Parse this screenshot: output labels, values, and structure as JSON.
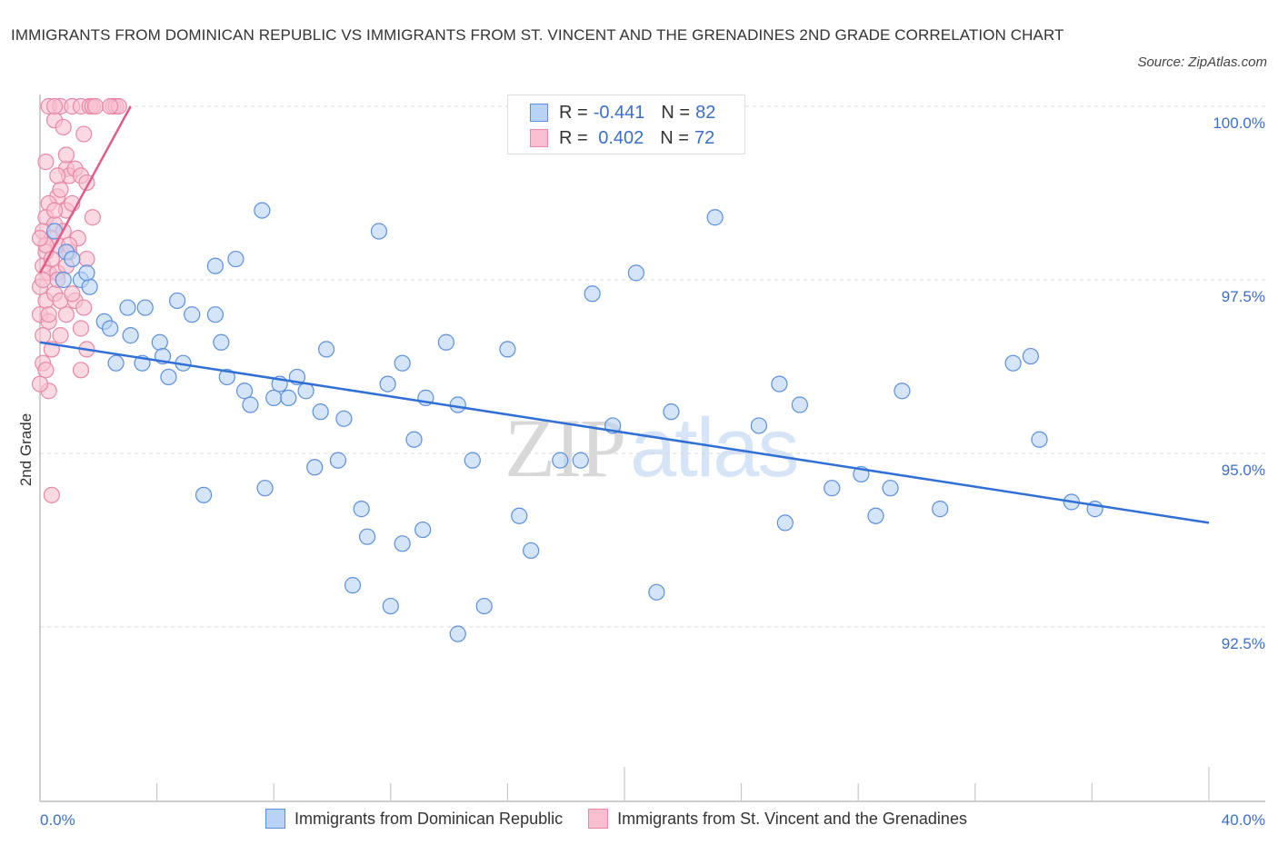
{
  "header": {
    "title": "IMMIGRANTS FROM DOMINICAN REPUBLIC VS IMMIGRANTS FROM ST. VINCENT AND THE GRENADINES 2ND GRADE CORRELATION CHART",
    "source": "Source: ZipAtlas.com"
  },
  "watermark": {
    "zip": "ZIP",
    "atlas": "atlas"
  },
  "legend": {
    "rows": [
      {
        "r_label": "R =",
        "r_value": "-0.441",
        "n_label": "N =",
        "n_value": "82"
      },
      {
        "r_label": "R =",
        "r_value": " 0.402",
        "n_label": "N =",
        "n_value": "72"
      }
    ]
  },
  "colors": {
    "blue_fill": "#b9d3f5",
    "blue_stroke": "#5b8fdc",
    "blue_line": "#2f6fd6",
    "pink_fill": "#f8bfd0",
    "pink_stroke": "#e888a6",
    "pink_line": "#e05c86",
    "tick_text": "#3b6fc7",
    "grid": "#d9d9d9"
  },
  "chart_data": {
    "type": "scatter",
    "title": "IMMIGRANTS FROM DOMINICAN REPUBLIC VS IMMIGRANTS FROM ST. VINCENT AND THE GRENADINES 2ND GRADE CORRELATION CHART",
    "xlabel": "",
    "ylabel": "2nd Grade",
    "xlim": [
      0,
      40
    ],
    "ylim": [
      90.0,
      100.2
    ],
    "x_tick_labels": [
      "0.0%",
      "40.0%"
    ],
    "y_ticks": [
      100.0,
      97.5,
      95.0,
      92.5
    ],
    "y_tick_labels": [
      "100.0%",
      "97.5%",
      "95.0%",
      "92.5%"
    ],
    "grid": true,
    "legend_placement": "bottom",
    "series": [
      {
        "name": "Immigrants from Dominican Republic",
        "color": "blue",
        "R": -0.441,
        "N": 82,
        "trend": {
          "x": [
            0.0,
            40.0
          ],
          "y": [
            96.6,
            94.0
          ]
        },
        "points": [
          [
            0.5,
            98.2
          ],
          [
            0.9,
            97.9
          ],
          [
            1.1,
            97.8
          ],
          [
            1.4,
            97.5
          ],
          [
            1.7,
            97.4
          ],
          [
            2.2,
            96.9
          ],
          [
            2.4,
            96.8
          ],
          [
            2.6,
            96.3
          ],
          [
            3.0,
            97.1
          ],
          [
            3.1,
            96.7
          ],
          [
            3.5,
            96.3
          ],
          [
            3.6,
            97.1
          ],
          [
            4.1,
            96.6
          ],
          [
            4.2,
            96.4
          ],
          [
            4.4,
            96.1
          ],
          [
            4.7,
            97.2
          ],
          [
            4.9,
            96.3
          ],
          [
            5.2,
            97.0
          ],
          [
            5.6,
            94.4
          ],
          [
            6.0,
            97.7
          ],
          [
            6.0,
            97.0
          ],
          [
            6.2,
            96.6
          ],
          [
            6.4,
            96.1
          ],
          [
            6.7,
            97.8
          ],
          [
            7.0,
            95.9
          ],
          [
            7.2,
            95.7
          ],
          [
            7.6,
            98.5
          ],
          [
            7.7,
            94.5
          ],
          [
            8.0,
            95.8
          ],
          [
            8.2,
            96.0
          ],
          [
            8.5,
            95.8
          ],
          [
            8.8,
            96.1
          ],
          [
            9.1,
            95.9
          ],
          [
            9.4,
            94.8
          ],
          [
            9.6,
            95.6
          ],
          [
            9.8,
            96.5
          ],
          [
            10.2,
            94.9
          ],
          [
            10.4,
            95.5
          ],
          [
            10.7,
            93.1
          ],
          [
            11.0,
            94.2
          ],
          [
            11.2,
            93.8
          ],
          [
            11.6,
            98.2
          ],
          [
            11.9,
            96.0
          ],
          [
            12.0,
            92.8
          ],
          [
            12.4,
            96.3
          ],
          [
            12.4,
            93.7
          ],
          [
            12.8,
            95.2
          ],
          [
            13.1,
            93.9
          ],
          [
            13.2,
            95.8
          ],
          [
            13.9,
            96.6
          ],
          [
            14.3,
            95.7
          ],
          [
            14.3,
            92.4
          ],
          [
            14.8,
            94.9
          ],
          [
            15.2,
            92.8
          ],
          [
            16.0,
            96.5
          ],
          [
            16.4,
            94.1
          ],
          [
            16.8,
            93.6
          ],
          [
            17.8,
            94.9
          ],
          [
            18.5,
            94.9
          ],
          [
            18.9,
            97.3
          ],
          [
            19.6,
            95.4
          ],
          [
            20.4,
            97.6
          ],
          [
            21.1,
            93.0
          ],
          [
            21.6,
            95.6
          ],
          [
            23.1,
            98.4
          ],
          [
            24.6,
            95.4
          ],
          [
            25.3,
            96.0
          ],
          [
            25.5,
            94.0
          ],
          [
            26.0,
            95.7
          ],
          [
            27.1,
            94.5
          ],
          [
            28.1,
            94.7
          ],
          [
            28.6,
            94.1
          ],
          [
            29.1,
            94.5
          ],
          [
            29.5,
            95.9
          ],
          [
            30.8,
            94.2
          ],
          [
            33.3,
            96.3
          ],
          [
            33.9,
            96.4
          ],
          [
            34.2,
            95.2
          ],
          [
            35.3,
            94.3
          ],
          [
            36.1,
            94.2
          ],
          [
            0.8,
            97.5
          ],
          [
            1.6,
            97.6
          ]
        ]
      },
      {
        "name": "Immigrants from St. Vincent and the Grenadines",
        "color": "pink",
        "R": 0.402,
        "N": 72,
        "trend": {
          "x": [
            0.0,
            3.1
          ],
          "y": [
            97.6,
            100.0
          ]
        },
        "points": [
          [
            0.3,
            100.0
          ],
          [
            0.5,
            99.8
          ],
          [
            0.7,
            100.0
          ],
          [
            0.8,
            99.7
          ],
          [
            1.1,
            100.0
          ],
          [
            1.5,
            99.6
          ],
          [
            1.4,
            100.0
          ],
          [
            1.7,
            100.0
          ],
          [
            1.8,
            100.0
          ],
          [
            2.5,
            100.0
          ],
          [
            2.6,
            100.0
          ],
          [
            2.7,
            100.0
          ],
          [
            0.9,
            99.1
          ],
          [
            1.0,
            99.0
          ],
          [
            1.2,
            99.1
          ],
          [
            1.4,
            99.0
          ],
          [
            1.6,
            98.9
          ],
          [
            0.6,
            98.7
          ],
          [
            0.7,
            98.8
          ],
          [
            0.3,
            98.6
          ],
          [
            0.2,
            98.4
          ],
          [
            0.5,
            98.3
          ],
          [
            0.9,
            98.5
          ],
          [
            1.8,
            98.4
          ],
          [
            0.1,
            98.2
          ],
          [
            0.4,
            98.1
          ],
          [
            0.6,
            98.0
          ],
          [
            0.2,
            97.9
          ],
          [
            1.0,
            97.9
          ],
          [
            1.3,
            98.1
          ],
          [
            0.1,
            97.7
          ],
          [
            0.3,
            97.6
          ],
          [
            0.6,
            97.6
          ],
          [
            0.9,
            97.7
          ],
          [
            1.6,
            97.8
          ],
          [
            0.0,
            97.4
          ],
          [
            0.2,
            97.2
          ],
          [
            0.5,
            97.3
          ],
          [
            0.7,
            97.2
          ],
          [
            1.2,
            97.2
          ],
          [
            0.0,
            97.0
          ],
          [
            0.3,
            96.9
          ],
          [
            0.9,
            97.0
          ],
          [
            1.5,
            97.1
          ],
          [
            0.1,
            96.7
          ],
          [
            0.4,
            96.5
          ],
          [
            1.4,
            96.8
          ],
          [
            1.6,
            96.5
          ],
          [
            0.1,
            96.3
          ],
          [
            0.2,
            96.2
          ],
          [
            1.4,
            96.2
          ],
          [
            0.3,
            95.9
          ],
          [
            0.4,
            94.4
          ],
          [
            0.0,
            96.0
          ],
          [
            0.6,
            97.5
          ],
          [
            0.8,
            98.2
          ],
          [
            0.2,
            98.0
          ],
          [
            0.4,
            97.8
          ],
          [
            0.0,
            98.1
          ],
          [
            0.5,
            98.5
          ],
          [
            1.1,
            98.6
          ],
          [
            0.3,
            97.0
          ],
          [
            0.7,
            96.7
          ],
          [
            1.1,
            97.3
          ],
          [
            0.2,
            99.2
          ],
          [
            0.9,
            99.3
          ],
          [
            0.5,
            100.0
          ],
          [
            1.9,
            100.0
          ],
          [
            2.4,
            100.0
          ],
          [
            0.6,
            99.0
          ],
          [
            0.1,
            97.5
          ],
          [
            1.0,
            98.0
          ]
        ]
      }
    ]
  },
  "bottom_legend": {
    "items": [
      {
        "label": "Immigrants from Dominican Republic"
      },
      {
        "label": "Immigrants from St. Vincent and the Grenadines"
      }
    ]
  }
}
